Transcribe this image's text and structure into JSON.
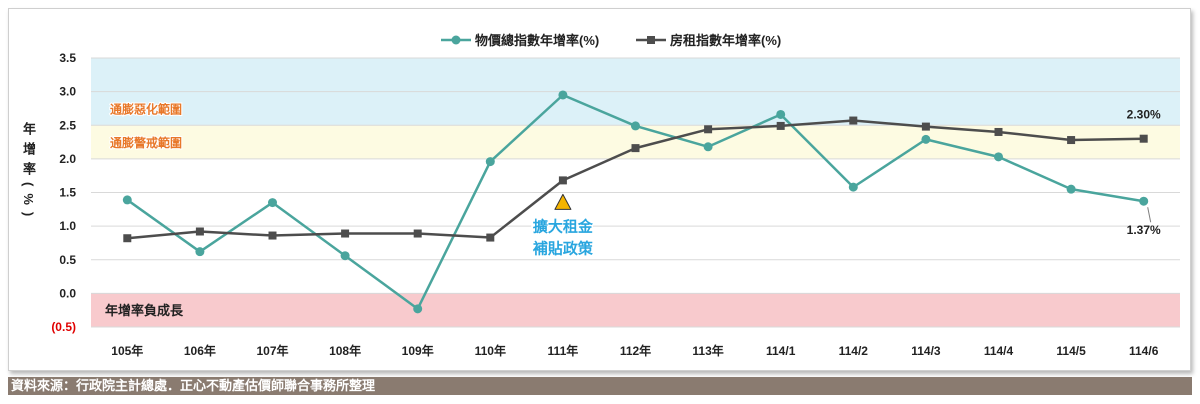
{
  "chart_data": {
    "type": "line",
    "categories": [
      "105年",
      "106年",
      "107年",
      "108年",
      "109年",
      "110年",
      "111年",
      "112年",
      "113年",
      "114/1",
      "114/2",
      "114/3",
      "114/4",
      "114/5",
      "114/6"
    ],
    "series": [
      {
        "name": "物價總指數年增率(%)",
        "color": "#4aa59d",
        "marker": "circle",
        "values": [
          1.39,
          0.62,
          1.35,
          0.56,
          -0.23,
          1.96,
          2.95,
          2.49,
          2.18,
          2.66,
          1.58,
          2.29,
          2.03,
          1.55,
          1.37
        ]
      },
      {
        "name": "房租指數年增率(%)",
        "color": "#4d4d4d",
        "marker": "square",
        "values": [
          0.82,
          0.92,
          0.86,
          0.89,
          0.89,
          0.83,
          1.68,
          2.16,
          2.44,
          2.49,
          2.57,
          2.48,
          2.4,
          2.28,
          2.3
        ]
      }
    ],
    "ylabel": "年增率(%)",
    "ylim": [
      -0.5,
      3.5
    ],
    "yticks": [
      {
        "value": 3.5,
        "label": "3.5"
      },
      {
        "value": 3.0,
        "label": "3.0"
      },
      {
        "value": 2.5,
        "label": "2.5"
      },
      {
        "value": 2.0,
        "label": "2.0"
      },
      {
        "value": 1.5,
        "label": "1.5"
      },
      {
        "value": 1.0,
        "label": "1.0"
      },
      {
        "value": 0.5,
        "label": "0.5"
      },
      {
        "value": 0.0,
        "label": "0.0"
      },
      {
        "value": -0.5,
        "label": "(0.5)"
      }
    ],
    "grid": true,
    "legend": "top-center",
    "bands": [
      {
        "label": "通膨惡化範圍",
        "from": 2.5,
        "to": 3.5,
        "color": "#dcf1f8",
        "label_color": "#e8782a"
      },
      {
        "label": "通膨警戒範圍",
        "from": 2.0,
        "to": 2.5,
        "color": "#fdfbe2",
        "label_color": "#e8782a"
      },
      {
        "label": "年增率負成長",
        "from": -0.5,
        "to": 0.0,
        "color": "#f8cacd",
        "label_color": "#222222"
      }
    ],
    "data_labels": [
      {
        "series": 1,
        "index": 14,
        "position": "above",
        "text": "2.30%"
      },
      {
        "series": 0,
        "index": 14,
        "position": "below",
        "text": "1.37%"
      }
    ],
    "annotations": [
      {
        "index": 6,
        "series": 1,
        "marker": "triangle",
        "marker_color": "#f5b400",
        "color": "#29a6df",
        "lines": [
          "擴大租金",
          "補貼政策"
        ]
      }
    ]
  },
  "source_note": "資料來源：行政院主計總處．正心不動產估價師聯合事務所整理",
  "colors": {
    "axis_text": "#222222",
    "negative_tick": "#e00000",
    "footer_bar": "#8a7b70",
    "footer_text": "#ffffff"
  }
}
